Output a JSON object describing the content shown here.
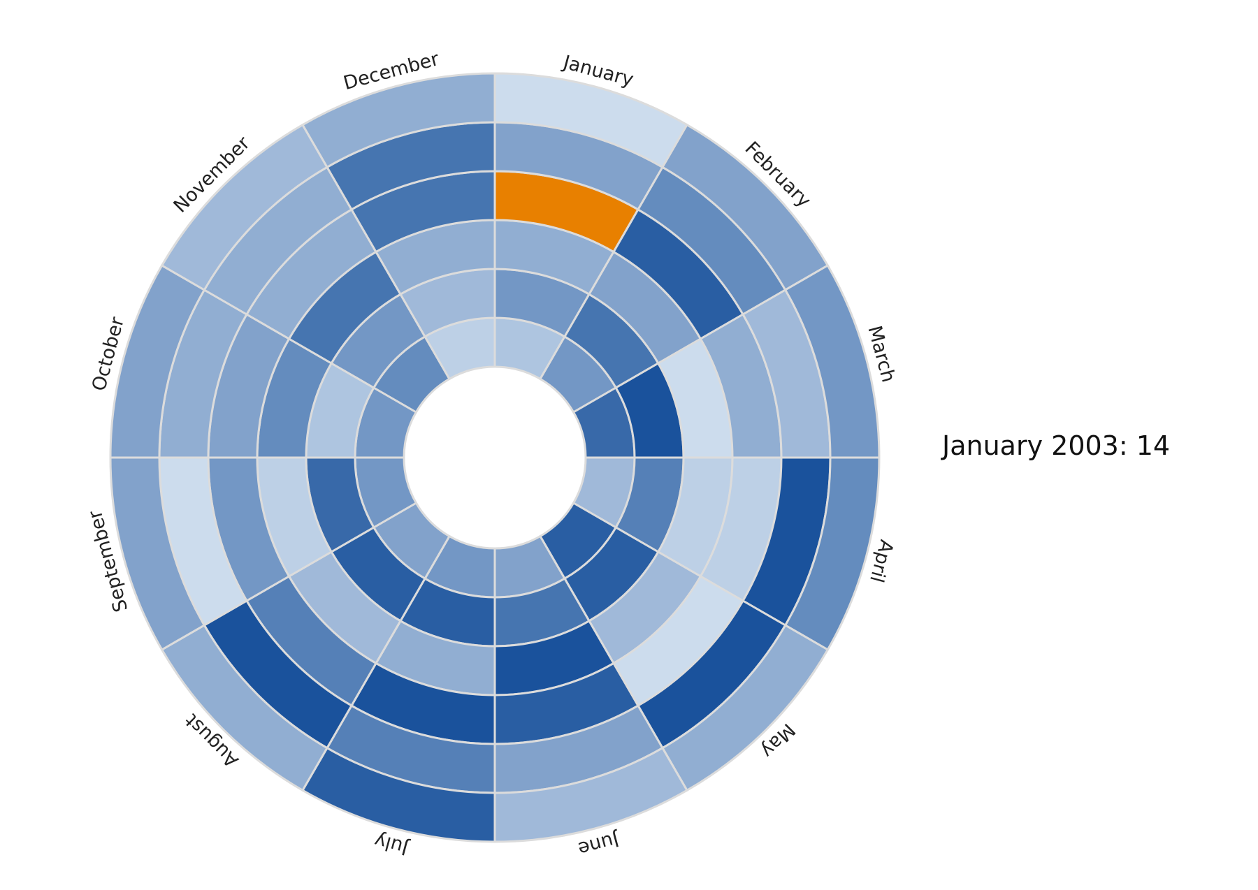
{
  "chart_data": {
    "type": "heatmap",
    "layout": "radial",
    "months": [
      "January",
      "February",
      "March",
      "April",
      "May",
      "June",
      "July",
      "August",
      "September",
      "October",
      "November",
      "December"
    ],
    "ring_order": "inner-to-outer",
    "value_range": [
      0,
      14
    ],
    "color_scale": {
      "low": "#dbe7f4",
      "high": "#0b4795"
    },
    "highlight_color": "#e88000",
    "rings": [
      {
        "values": [
          3,
          7,
          11,
          4,
          12,
          6,
          7,
          6,
          7,
          7,
          8,
          2
        ]
      },
      {
        "values": [
          7,
          10,
          13,
          9,
          12,
          10,
          12,
          12,
          11,
          3,
          7,
          4
        ]
      },
      {
        "values": [
          5,
          6,
          1,
          2,
          4,
          13,
          5,
          4,
          2,
          8,
          10,
          5
        ]
      },
      {
        "values": [
          14,
          12,
          5,
          2,
          1,
          12,
          13,
          9,
          7,
          6,
          5,
          10
        ]
      },
      {
        "values": [
          6,
          8,
          4,
          13,
          13,
          6,
          9,
          13,
          1,
          5,
          5,
          10
        ]
      },
      {
        "values": [
          1,
          6,
          7,
          8,
          5,
          4,
          12,
          5,
          6,
          6,
          4,
          5
        ]
      }
    ],
    "highlighted_cell": {
      "month": "January",
      "ring": 3,
      "value": 14
    }
  },
  "tooltip": {
    "text": "January 2003: 14"
  }
}
